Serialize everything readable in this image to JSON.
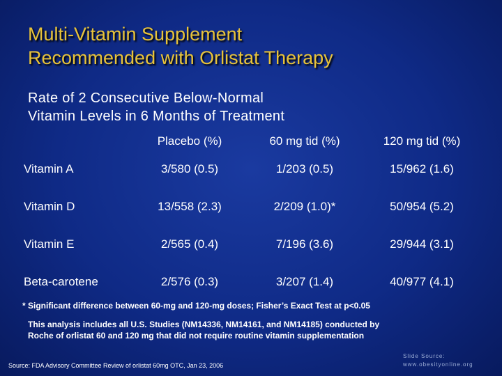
{
  "header": {
    "title": [
      "Multi-Vitamin Supplement",
      "Recommended with Orlistat Therapy"
    ],
    "subtitle": [
      "Rate of 2 Consecutive Below-Normal",
      "Vitamin Levels in 6 Months of Treatment"
    ]
  },
  "table": {
    "columns": [
      "Placebo (%)",
      "60 mg tid (%)",
      "120 mg tid (%)"
    ],
    "rows": [
      [
        "Vitamin A",
        "3/580 (0.5)",
        "1/203 (0.5)",
        "15/962 (1.6)"
      ],
      [
        "Vitamin D",
        "13/558 (2.3)",
        "2/209 (1.0)*",
        "50/954 (5.2)"
      ],
      [
        "Vitamin E",
        "2/565 (0.4)",
        "7/196 (3.6)",
        "29/944 (3.1)"
      ],
      [
        "Beta-carotene",
        "2/576 (0.3)",
        "3/207 (1.4)",
        "40/977 (4.1)"
      ]
    ]
  },
  "footnotes": [
    "* Significant difference between 60-mg and 120-mg doses; Fisher’s Exact Test  at p<0.05",
    "This analysis includes all U.S. Studies (NM14336, NM14161, and NM14185) conducted by",
    "Roche of orlistat 60 and 120 mg that did not require routine vitamin supplementation"
  ],
  "source": "Source: FDA Advisory Committee Review of orlistat 60mg OTC, Jan 23, 2006",
  "credit": [
    "Slide Source:",
    "www.obesityonline.org"
  ]
}
